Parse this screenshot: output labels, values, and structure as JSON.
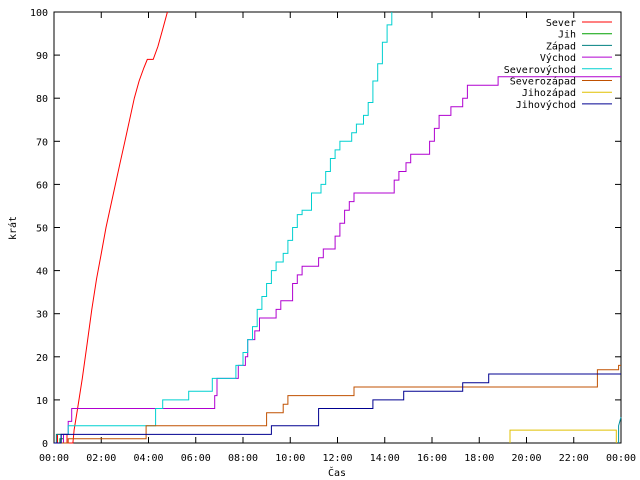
{
  "chart_data": {
    "type": "line",
    "xlabel": "Čas",
    "ylabel": "krát",
    "xlim": [
      0,
      24
    ],
    "ylim": [
      0,
      100
    ],
    "x_unit": "hours",
    "x_ticks": [
      {
        "v": 0,
        "label": "00:00"
      },
      {
        "v": 2,
        "label": "02:00"
      },
      {
        "v": 4,
        "label": "04:00"
      },
      {
        "v": 6,
        "label": "06:00"
      },
      {
        "v": 8,
        "label": "08:00"
      },
      {
        "v": 10,
        "label": "10:00"
      },
      {
        "v": 12,
        "label": "12:00"
      },
      {
        "v": 14,
        "label": "14:00"
      },
      {
        "v": 16,
        "label": "16:00"
      },
      {
        "v": 18,
        "label": "18:00"
      },
      {
        "v": 20,
        "label": "20:00"
      },
      {
        "v": 22,
        "label": "22:00"
      },
      {
        "v": 24,
        "label": "00:00"
      }
    ],
    "y_ticks": [
      {
        "v": 0,
        "label": "0"
      },
      {
        "v": 10,
        "label": "10"
      },
      {
        "v": 20,
        "label": "20"
      },
      {
        "v": 30,
        "label": "30"
      },
      {
        "v": 40,
        "label": "40"
      },
      {
        "v": 50,
        "label": "50"
      },
      {
        "v": 60,
        "label": "60"
      },
      {
        "v": 70,
        "label": "70"
      },
      {
        "v": 80,
        "label": "80"
      },
      {
        "v": 90,
        "label": "90"
      },
      {
        "v": 100,
        "label": "100"
      }
    ],
    "grid": false,
    "legend_position": "top-right",
    "series": [
      {
        "name": "Sever",
        "color": "#ff0000",
        "points": [
          [
            0,
            0
          ],
          [
            0.15,
            0
          ],
          [
            0.15,
            2
          ],
          [
            0.55,
            2
          ],
          [
            0.55,
            0
          ],
          [
            0.8,
            0
          ],
          [
            0.85,
            3
          ],
          [
            1.0,
            8
          ],
          [
            1.2,
            15
          ],
          [
            1.4,
            23
          ],
          [
            1.6,
            31
          ],
          [
            1.8,
            38
          ],
          [
            2.0,
            44
          ],
          [
            2.2,
            50
          ],
          [
            2.4,
            55
          ],
          [
            2.6,
            60
          ],
          [
            2.8,
            65
          ],
          [
            3.0,
            70
          ],
          [
            3.2,
            75
          ],
          [
            3.4,
            80
          ],
          [
            3.6,
            84
          ],
          [
            3.8,
            87
          ],
          [
            3.95,
            89
          ],
          [
            4.2,
            89
          ],
          [
            4.4,
            92
          ],
          [
            4.6,
            96
          ],
          [
            4.8,
            100
          ]
        ]
      },
      {
        "name": "Jih",
        "color": "#00a000",
        "points": [
          [
            0.25,
            0
          ],
          [
            0.25,
            1
          ],
          [
            0.4,
            1
          ],
          [
            0.4,
            0
          ]
        ]
      },
      {
        "name": "Západ",
        "color": "#008080",
        "points": [
          [
            0.1,
            0
          ],
          [
            0.1,
            2
          ],
          [
            0.3,
            2
          ],
          [
            0.3,
            0
          ]
        ]
      },
      {
        "name": "Východ",
        "color": "#b000d0",
        "points": [
          [
            0,
            0
          ],
          [
            0.4,
            0
          ],
          [
            0.4,
            2
          ],
          [
            0.6,
            2
          ],
          [
            0.6,
            5
          ],
          [
            0.75,
            5
          ],
          [
            0.75,
            8
          ],
          [
            6.8,
            8
          ],
          [
            6.8,
            11
          ],
          [
            6.9,
            11
          ],
          [
            6.9,
            15
          ],
          [
            7.8,
            15
          ],
          [
            7.8,
            18
          ],
          [
            8.1,
            18
          ],
          [
            8.1,
            20
          ],
          [
            8.2,
            20
          ],
          [
            8.2,
            24
          ],
          [
            8.5,
            24
          ],
          [
            8.5,
            26
          ],
          [
            8.7,
            26
          ],
          [
            8.7,
            29
          ],
          [
            9.4,
            29
          ],
          [
            9.4,
            31
          ],
          [
            9.6,
            31
          ],
          [
            9.6,
            33
          ],
          [
            10.1,
            33
          ],
          [
            10.1,
            37
          ],
          [
            10.3,
            37
          ],
          [
            10.3,
            39
          ],
          [
            10.5,
            39
          ],
          [
            10.5,
            41
          ],
          [
            11.2,
            41
          ],
          [
            11.2,
            43
          ],
          [
            11.4,
            43
          ],
          [
            11.4,
            45
          ],
          [
            11.9,
            45
          ],
          [
            11.9,
            48
          ],
          [
            12.1,
            48
          ],
          [
            12.1,
            51
          ],
          [
            12.3,
            51
          ],
          [
            12.3,
            54
          ],
          [
            12.5,
            54
          ],
          [
            12.5,
            56
          ],
          [
            12.7,
            56
          ],
          [
            12.7,
            58
          ],
          [
            14.4,
            58
          ],
          [
            14.4,
            61
          ],
          [
            14.6,
            61
          ],
          [
            14.6,
            63
          ],
          [
            14.9,
            63
          ],
          [
            14.9,
            65
          ],
          [
            15.1,
            65
          ],
          [
            15.1,
            67
          ],
          [
            15.9,
            67
          ],
          [
            15.9,
            70
          ],
          [
            16.1,
            70
          ],
          [
            16.1,
            73
          ],
          [
            16.3,
            73
          ],
          [
            16.3,
            76
          ],
          [
            16.8,
            76
          ],
          [
            16.8,
            78
          ],
          [
            17.3,
            78
          ],
          [
            17.3,
            80
          ],
          [
            17.5,
            80
          ],
          [
            17.5,
            83
          ],
          [
            18.8,
            83
          ],
          [
            18.8,
            85
          ],
          [
            24,
            85
          ]
        ]
      },
      {
        "name": "Severovýchod",
        "color": "#00d0d0",
        "points": [
          [
            0,
            0
          ],
          [
            0.3,
            0
          ],
          [
            0.3,
            2
          ],
          [
            0.6,
            2
          ],
          [
            0.6,
            4
          ],
          [
            4.3,
            4
          ],
          [
            4.3,
            8
          ],
          [
            4.6,
            8
          ],
          [
            4.6,
            10
          ],
          [
            5.7,
            10
          ],
          [
            5.7,
            12
          ],
          [
            6.7,
            12
          ],
          [
            6.7,
            15
          ],
          [
            7.7,
            15
          ],
          [
            7.7,
            18
          ],
          [
            8.0,
            18
          ],
          [
            8.0,
            21
          ],
          [
            8.2,
            21
          ],
          [
            8.2,
            24
          ],
          [
            8.4,
            24
          ],
          [
            8.4,
            27
          ],
          [
            8.6,
            27
          ],
          [
            8.6,
            31
          ],
          [
            8.8,
            31
          ],
          [
            8.8,
            34
          ],
          [
            9.0,
            34
          ],
          [
            9.0,
            37
          ],
          [
            9.2,
            37
          ],
          [
            9.2,
            40
          ],
          [
            9.4,
            40
          ],
          [
            9.4,
            42
          ],
          [
            9.7,
            42
          ],
          [
            9.7,
            44
          ],
          [
            9.9,
            44
          ],
          [
            9.9,
            47
          ],
          [
            10.1,
            47
          ],
          [
            10.1,
            50
          ],
          [
            10.3,
            50
          ],
          [
            10.3,
            53
          ],
          [
            10.5,
            53
          ],
          [
            10.5,
            54
          ],
          [
            10.9,
            54
          ],
          [
            10.9,
            58
          ],
          [
            11.3,
            58
          ],
          [
            11.3,
            60
          ],
          [
            11.5,
            60
          ],
          [
            11.5,
            63
          ],
          [
            11.7,
            63
          ],
          [
            11.7,
            66
          ],
          [
            11.9,
            66
          ],
          [
            11.9,
            68
          ],
          [
            12.1,
            68
          ],
          [
            12.1,
            70
          ],
          [
            12.6,
            70
          ],
          [
            12.6,
            72
          ],
          [
            12.8,
            72
          ],
          [
            12.8,
            74
          ],
          [
            13.1,
            74
          ],
          [
            13.1,
            76
          ],
          [
            13.3,
            76
          ],
          [
            13.3,
            79
          ],
          [
            13.5,
            79
          ],
          [
            13.5,
            84
          ],
          [
            13.7,
            84
          ],
          [
            13.7,
            88
          ],
          [
            13.9,
            88
          ],
          [
            13.9,
            93
          ],
          [
            14.1,
            93
          ],
          [
            14.1,
            97
          ],
          [
            14.3,
            97
          ],
          [
            14.3,
            100
          ]
        ]
      },
      {
        "name": "Severozápad",
        "color": "#c05000",
        "points": [
          [
            0,
            0
          ],
          [
            0.6,
            0
          ],
          [
            0.6,
            1
          ],
          [
            3.9,
            1
          ],
          [
            3.9,
            4
          ],
          [
            9.0,
            4
          ],
          [
            9.0,
            7
          ],
          [
            9.7,
            7
          ],
          [
            9.7,
            9
          ],
          [
            9.9,
            9
          ],
          [
            9.9,
            11
          ],
          [
            12.7,
            11
          ],
          [
            12.7,
            13
          ],
          [
            23.0,
            13
          ],
          [
            23.0,
            17
          ],
          [
            23.9,
            17
          ],
          [
            23.9,
            18
          ],
          [
            24,
            18
          ]
        ]
      },
      {
        "name": "Jihozápad",
        "color": "#e0c000",
        "points": [
          [
            19.3,
            0
          ],
          [
            19.3,
            3
          ],
          [
            23.8,
            3
          ],
          [
            23.8,
            0
          ]
        ]
      },
      {
        "name": "Jihovýchod",
        "color": "#000090",
        "points": [
          [
            0,
            0
          ],
          [
            0.3,
            0
          ],
          [
            0.3,
            2
          ],
          [
            9.2,
            2
          ],
          [
            9.2,
            4
          ],
          [
            11.2,
            4
          ],
          [
            11.2,
            8
          ],
          [
            13.5,
            8
          ],
          [
            13.5,
            10
          ],
          [
            14.8,
            10
          ],
          [
            14.8,
            12
          ],
          [
            17.3,
            12
          ],
          [
            17.3,
            14
          ],
          [
            18.4,
            14
          ],
          [
            18.4,
            16
          ],
          [
            24,
            16
          ]
        ]
      },
      {
        "name": "",
        "color": "#0090a0",
        "points": [
          [
            23.9,
            0
          ],
          [
            23.9,
            4
          ],
          [
            24,
            6
          ]
        ]
      }
    ]
  }
}
